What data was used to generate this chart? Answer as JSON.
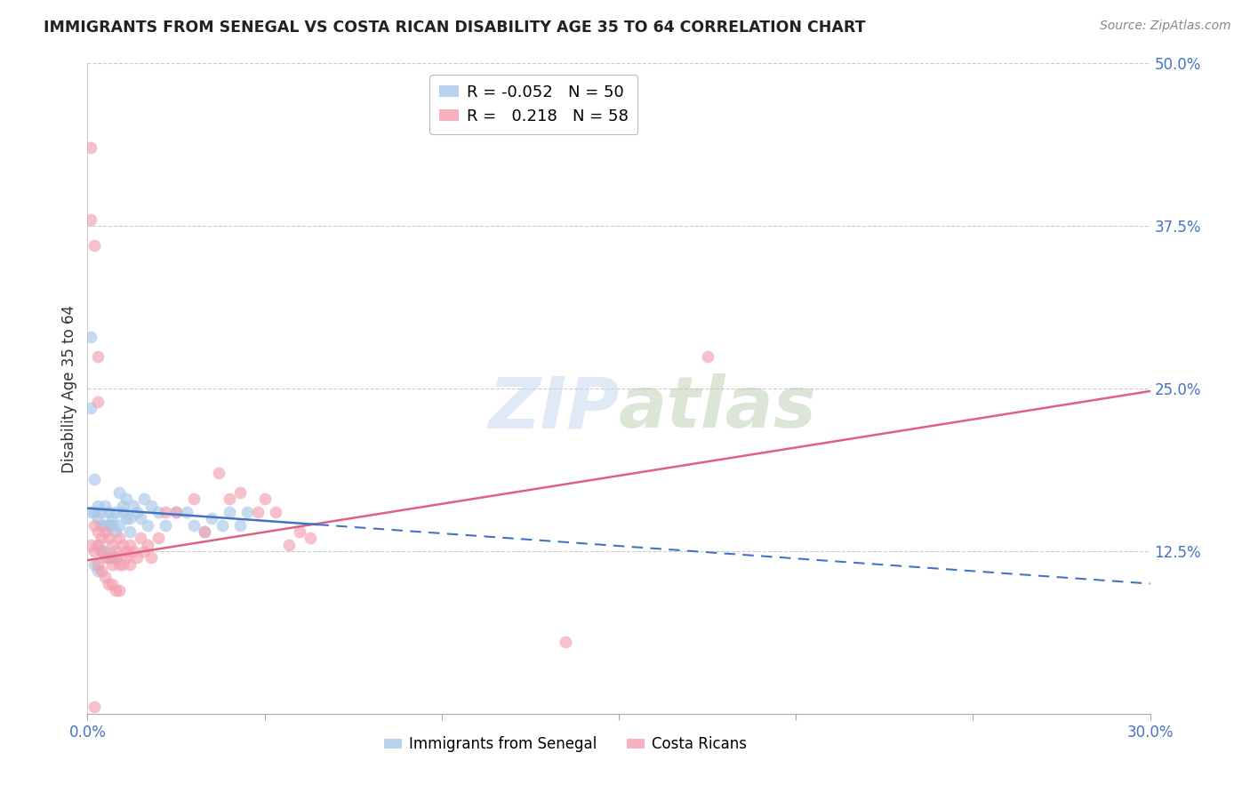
{
  "title": "IMMIGRANTS FROM SENEGAL VS COSTA RICAN DISABILITY AGE 35 TO 64 CORRELATION CHART",
  "source": "Source: ZipAtlas.com",
  "ylabel": "Disability Age 35 to 64",
  "xlim": [
    0.0,
    0.3
  ],
  "ylim": [
    0.0,
    0.5
  ],
  "blue_R": -0.052,
  "blue_N": 50,
  "pink_R": 0.218,
  "pink_N": 58,
  "blue_color": "#a8c8e8",
  "pink_color": "#f4a0b0",
  "blue_line_color": "#4472c4",
  "pink_line_color": "#e06080",
  "watermark_color": "#c8d8f0",
  "legend_label_blue": "Immigrants from Senegal",
  "legend_label_pink": "Costa Ricans",
  "blue_scatter_x": [
    0.001,
    0.002,
    0.002,
    0.003,
    0.003,
    0.004,
    0.004,
    0.005,
    0.005,
    0.006,
    0.006,
    0.007,
    0.007,
    0.008,
    0.008,
    0.009,
    0.009,
    0.01,
    0.01,
    0.011,
    0.011,
    0.012,
    0.012,
    0.013,
    0.014,
    0.015,
    0.016,
    0.017,
    0.018,
    0.02,
    0.022,
    0.025,
    0.028,
    0.03,
    0.033,
    0.035,
    0.038,
    0.04,
    0.043,
    0.045,
    0.003,
    0.004,
    0.005,
    0.006,
    0.007,
    0.008,
    0.002,
    0.003,
    0.001,
    0.001
  ],
  "blue_scatter_y": [
    0.155,
    0.18,
    0.155,
    0.16,
    0.15,
    0.155,
    0.145,
    0.16,
    0.145,
    0.155,
    0.145,
    0.15,
    0.145,
    0.155,
    0.14,
    0.17,
    0.145,
    0.155,
    0.16,
    0.15,
    0.165,
    0.15,
    0.14,
    0.16,
    0.155,
    0.15,
    0.165,
    0.145,
    0.16,
    0.155,
    0.145,
    0.155,
    0.155,
    0.145,
    0.14,
    0.15,
    0.145,
    0.155,
    0.145,
    0.155,
    0.13,
    0.125,
    0.125,
    0.12,
    0.12,
    0.12,
    0.115,
    0.11,
    0.29,
    0.235
  ],
  "pink_scatter_x": [
    0.001,
    0.002,
    0.002,
    0.003,
    0.003,
    0.004,
    0.004,
    0.005,
    0.005,
    0.006,
    0.006,
    0.007,
    0.007,
    0.008,
    0.008,
    0.009,
    0.009,
    0.01,
    0.01,
    0.011,
    0.011,
    0.012,
    0.012,
    0.013,
    0.014,
    0.015,
    0.016,
    0.017,
    0.018,
    0.02,
    0.022,
    0.025,
    0.03,
    0.033,
    0.037,
    0.04,
    0.043,
    0.048,
    0.05,
    0.053,
    0.057,
    0.06,
    0.063,
    0.003,
    0.004,
    0.005,
    0.006,
    0.007,
    0.008,
    0.009,
    0.002,
    0.003,
    0.001,
    0.001,
    0.175,
    0.003,
    0.135,
    0.002
  ],
  "pink_scatter_y": [
    0.13,
    0.145,
    0.125,
    0.14,
    0.13,
    0.135,
    0.125,
    0.14,
    0.12,
    0.135,
    0.12,
    0.13,
    0.115,
    0.125,
    0.12,
    0.135,
    0.115,
    0.13,
    0.115,
    0.125,
    0.12,
    0.13,
    0.115,
    0.125,
    0.12,
    0.135,
    0.125,
    0.13,
    0.12,
    0.135,
    0.155,
    0.155,
    0.165,
    0.14,
    0.185,
    0.165,
    0.17,
    0.155,
    0.165,
    0.155,
    0.13,
    0.14,
    0.135,
    0.115,
    0.11,
    0.105,
    0.1,
    0.1,
    0.095,
    0.095,
    0.36,
    0.275,
    0.435,
    0.38,
    0.275,
    0.24,
    0.055,
    0.005
  ],
  "blue_trend_x": [
    0.0,
    0.3
  ],
  "blue_trend_y": [
    0.158,
    0.1
  ],
  "pink_trend_x": [
    0.0,
    0.3
  ],
  "pink_trend_y": [
    0.118,
    0.248
  ]
}
